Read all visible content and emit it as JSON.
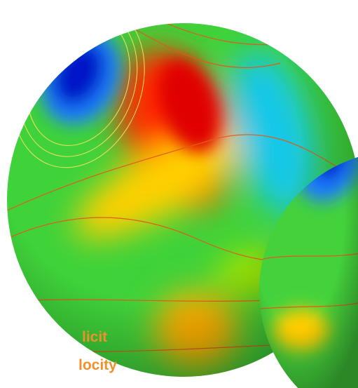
{
  "labels": {
    "line1": "licit",
    "line2": "locity"
  }
}
